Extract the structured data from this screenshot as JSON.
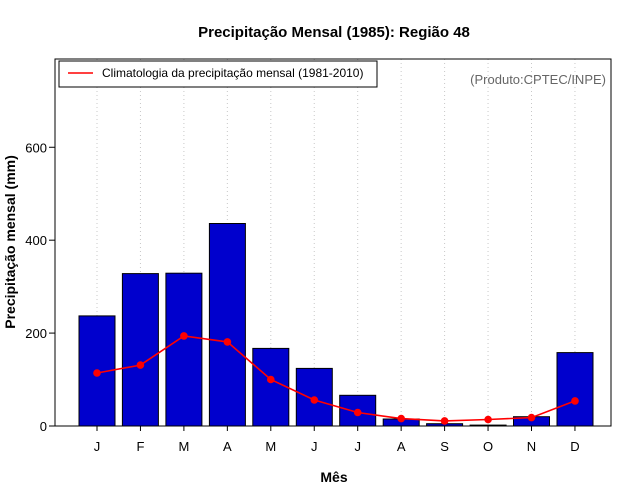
{
  "chart_data": {
    "type": "bar",
    "title": "Precipitação Mensal (1985): Região 48",
    "xlabel": "Mês",
    "ylabel": "Precipitação mensal (mm)",
    "categories": [
      "J",
      "F",
      "M",
      "A",
      "M",
      "J",
      "J",
      "A",
      "S",
      "O",
      "N",
      "D"
    ],
    "ylim": [
      0,
      790
    ],
    "yticks": [
      0,
      200,
      400,
      600
    ],
    "grid": "vertical-dotted",
    "series": [
      {
        "name": "Precipitação mensal (1985)",
        "kind": "bar",
        "color": "#0000cd",
        "values": [
          237,
          328,
          329,
          436,
          167,
          124,
          66,
          15,
          5,
          2,
          20,
          158
        ]
      },
      {
        "name": "Climatologia da precipitação mensal (1981-2010)",
        "kind": "line",
        "color": "#ff0000",
        "values": [
          114,
          131,
          194,
          181,
          100,
          56,
          29,
          16,
          11,
          14,
          18,
          54
        ]
      }
    ],
    "legend": {
      "position": "top-left",
      "entries": [
        "Climatologia da precipitação mensal (1981-2010)"
      ]
    },
    "annotation": "(Produto:CPTEC/INPE)"
  }
}
